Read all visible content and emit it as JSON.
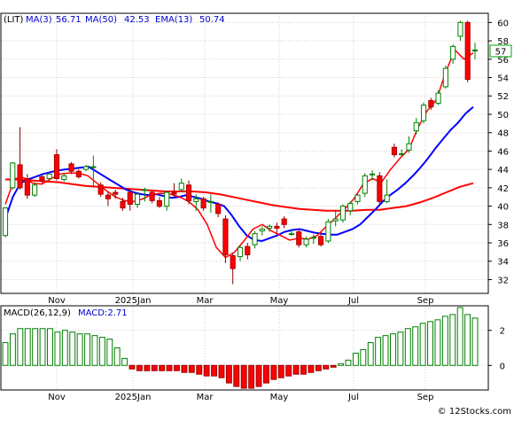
{
  "chart_data": [
    {
      "type": "candlestick",
      "ticker": "LIT",
      "legend": [
        {
          "label": "(LIT)",
          "color": "#000000"
        },
        {
          "label": "MA(3)",
          "value": "56.71",
          "color": "#ff0000"
        },
        {
          "label": "MA(50)",
          "value": "42.53",
          "color": "#ff0000"
        },
        {
          "label": "EMA(13)",
          "value": "50.74",
          "color": "#0000ff"
        }
      ],
      "x_ticks": [
        "Nov",
        "2025Jan",
        "Mar",
        "May",
        "Jul",
        "Sep"
      ],
      "y_ticks": [
        32,
        34,
        36,
        38,
        40,
        42,
        44,
        46,
        48,
        50,
        52,
        54,
        56,
        58,
        60
      ],
      "ylim": [
        30.5,
        61
      ],
      "last_price": "57",
      "grid": true,
      "colors": {
        "up": "#008000",
        "down": "#ff0000",
        "ema13": "#0000ff",
        "ma50": "#ff0000",
        "ma200": "#0000ff"
      },
      "candles": [
        [
          36.8,
          39.8,
          36.6,
          39.9
        ],
        [
          42.0,
          44.7,
          41.8,
          44.8
        ],
        [
          44.5,
          42.0,
          41.8,
          48.6
        ],
        [
          43.0,
          41.2,
          40.8,
          43.5
        ],
        [
          41.2,
          42.3,
          41.0,
          42.6
        ],
        [
          43.2,
          42.8,
          42.5,
          43.4
        ],
        [
          43.0,
          43.5,
          42.8,
          43.7
        ],
        [
          45.6,
          43.0,
          42.8,
          46.2
        ],
        [
          42.9,
          43.3,
          42.7,
          43.5
        ],
        [
          44.6,
          43.8,
          43.5,
          44.8
        ],
        [
          43.8,
          43.2,
          43.0,
          44.0
        ],
        [
          44.0,
          44.3,
          43.8,
          44.5
        ],
        [
          44.2,
          44.3,
          42.0,
          45.5
        ],
        [
          42.3,
          41.3,
          41.0,
          42.6
        ],
        [
          41.2,
          40.8,
          40.0,
          41.5
        ],
        [
          41.5,
          41.3,
          40.8,
          41.8
        ],
        [
          40.5,
          39.8,
          39.5,
          40.9
        ],
        [
          41.5,
          40.2,
          39.5,
          41.8
        ],
        [
          40.2,
          41.3,
          39.8,
          41.5
        ],
        [
          41.7,
          41.8,
          40.5,
          42.0
        ],
        [
          41.5,
          40.6,
          40.3,
          41.7
        ],
        [
          40.6,
          40.0,
          39.8,
          41.0
        ],
        [
          40.0,
          41.5,
          39.5,
          41.7
        ],
        [
          41.5,
          41.3,
          41.0,
          42.5
        ],
        [
          41.8,
          42.5,
          41.5,
          43.0
        ],
        [
          42.3,
          40.6,
          40.2,
          42.8
        ],
        [
          40.5,
          40.8,
          39.5,
          41.3
        ],
        [
          40.8,
          39.8,
          39.5,
          41.0
        ],
        [
          40.5,
          40.5,
          39.3,
          41.3
        ],
        [
          40.2,
          39.2,
          38.8,
          40.4
        ],
        [
          38.6,
          34.7,
          33.8,
          39.0
        ],
        [
          34.6,
          33.2,
          31.5,
          34.9
        ],
        [
          34.5,
          35.5,
          34.0,
          35.7
        ],
        [
          35.6,
          34.7,
          34.2,
          36.0
        ],
        [
          35.8,
          37.0,
          35.4,
          37.3
        ],
        [
          37.3,
          37.5,
          36.8,
          37.8
        ],
        [
          37.6,
          37.8,
          37.2,
          38.0
        ],
        [
          37.8,
          37.6,
          37.0,
          38.2
        ],
        [
          38.6,
          38.0,
          37.6,
          38.9
        ],
        [
          37.0,
          37.0,
          36.8,
          37.5
        ],
        [
          37.2,
          35.8,
          35.5,
          37.5
        ],
        [
          35.8,
          36.4,
          35.5,
          36.7
        ],
        [
          36.5,
          36.6,
          35.9,
          36.9
        ],
        [
          36.7,
          35.8,
          35.6,
          37.0
        ],
        [
          36.2,
          38.3,
          36.0,
          38.6
        ],
        [
          38.4,
          38.6,
          37.8,
          39.6
        ],
        [
          38.5,
          40.0,
          38.2,
          40.2
        ],
        [
          39.5,
          40.3,
          39.0,
          40.5
        ],
        [
          40.5,
          41.2,
          40.2,
          41.5
        ],
        [
          41.4,
          43.3,
          41.0,
          43.6
        ],
        [
          43.5,
          43.5,
          42.8,
          43.9
        ],
        [
          43.3,
          40.5,
          40.0,
          43.7
        ],
        [
          40.5,
          41.2,
          40.3,
          42.9
        ],
        [
          46.4,
          45.6,
          45.3,
          46.8
        ],
        [
          45.7,
          45.7,
          45.5,
          46.2
        ],
        [
          46.1,
          46.8,
          45.8,
          47.6
        ],
        [
          48.2,
          49.1,
          47.8,
          49.6
        ],
        [
          49.3,
          51.0,
          49.0,
          51.3
        ],
        [
          51.5,
          50.8,
          50.5,
          51.8
        ],
        [
          51.2,
          52.3,
          51.0,
          52.6
        ],
        [
          53.0,
          55.0,
          52.8,
          55.3
        ],
        [
          56.0,
          57.4,
          55.5,
          57.6
        ],
        [
          58.5,
          60.0,
          58.0,
          60.2
        ],
        [
          60.0,
          53.8,
          53.5,
          60.2
        ],
        [
          57.0,
          57.0,
          56.0,
          57.8
        ]
      ],
      "ema13": [
        38.6,
        41.0,
        42.5,
        42.9,
        43.2,
        43.5,
        43.7,
        43.9,
        44.0,
        44.1,
        44.2,
        44.3,
        43.8,
        43.3,
        42.8,
        42.3,
        41.8,
        41.5,
        41.3,
        41.2,
        41.3,
        41.1,
        40.9,
        41.0,
        41.2,
        41.0,
        40.8,
        40.5,
        40.3,
        40.0,
        39.0,
        37.8,
        36.8,
        36.3,
        36.2,
        36.5,
        36.8,
        37.2,
        37.4,
        37.5,
        37.3,
        37.1,
        37.0,
        36.9,
        36.9,
        37.2,
        37.5,
        38.0,
        38.8,
        39.6,
        40.5,
        41.2,
        41.8,
        42.5,
        43.3,
        44.2,
        45.2,
        46.3,
        47.3,
        48.3,
        49.1,
        50.1,
        50.8
      ],
      "ma50": [
        42.9,
        42.9,
        42.8,
        42.7,
        42.6,
        42.4,
        42.2,
        42.1,
        42.0,
        41.9,
        41.8,
        41.7,
        41.6,
        41.6,
        41.6,
        41.5,
        41.3,
        41.0,
        40.7,
        40.4,
        40.1,
        39.9,
        39.7,
        39.6,
        39.5,
        39.5,
        39.5,
        39.6,
        39.6,
        39.8,
        40.0,
        40.4,
        40.9,
        41.5,
        42.1,
        42.5
      ],
      "ma3": [
        40.2,
        43.0,
        43.1,
        42.5,
        42.4,
        43.0,
        43.5,
        43.6,
        43.6,
        43.3,
        42.5,
        41.7,
        41.0,
        40.6,
        40.5,
        40.8,
        41.3,
        41.4,
        41.3,
        41.0,
        40.5,
        39.6,
        38.0,
        35.5,
        34.4,
        35.0,
        36.2,
        37.5,
        38.0,
        37.3,
        36.8,
        36.3,
        36.5,
        36.4,
        36.8,
        37.8,
        38.7,
        39.7,
        40.8,
        42.4,
        43.0,
        42.6,
        44.0,
        45.2,
        46.2,
        48.6,
        50.4,
        51.6,
        54.6,
        57.0,
        56.0,
        56.7
      ]
    },
    {
      "type": "bar",
      "title": "MACD(26,12,9)",
      "value_label": "MACD:2.71",
      "y_ticks": [
        0,
        2
      ],
      "ylim": [
        -1.4,
        3.4
      ],
      "x_ticks": [
        "Nov",
        "2025Jan",
        "Mar",
        "May",
        "Jul",
        "Sep"
      ],
      "colors": {
        "positive": "#008000",
        "negative": "#ff0000",
        "label": "#0000ff"
      },
      "values": [
        1.3,
        1.8,
        2.1,
        2.1,
        2.1,
        2.1,
        2.1,
        1.9,
        2.0,
        1.9,
        1.8,
        1.8,
        1.7,
        1.6,
        1.5,
        1.0,
        0.4,
        -0.2,
        -0.3,
        -0.3,
        -0.3,
        -0.3,
        -0.3,
        -0.3,
        -0.4,
        -0.4,
        -0.5,
        -0.6,
        -0.6,
        -0.7,
        -1.0,
        -1.2,
        -1.3,
        -1.3,
        -1.2,
        -1.0,
        -0.8,
        -0.7,
        -0.6,
        -0.5,
        -0.5,
        -0.4,
        -0.3,
        -0.2,
        -0.1,
        0.1,
        0.3,
        0.7,
        0.9,
        1.3,
        1.6,
        1.7,
        1.8,
        1.9,
        2.1,
        2.2,
        2.4,
        2.5,
        2.6,
        2.8,
        2.9,
        3.3,
        2.9,
        2.7
      ]
    }
  ],
  "watermark": "© 12Stocks.com"
}
